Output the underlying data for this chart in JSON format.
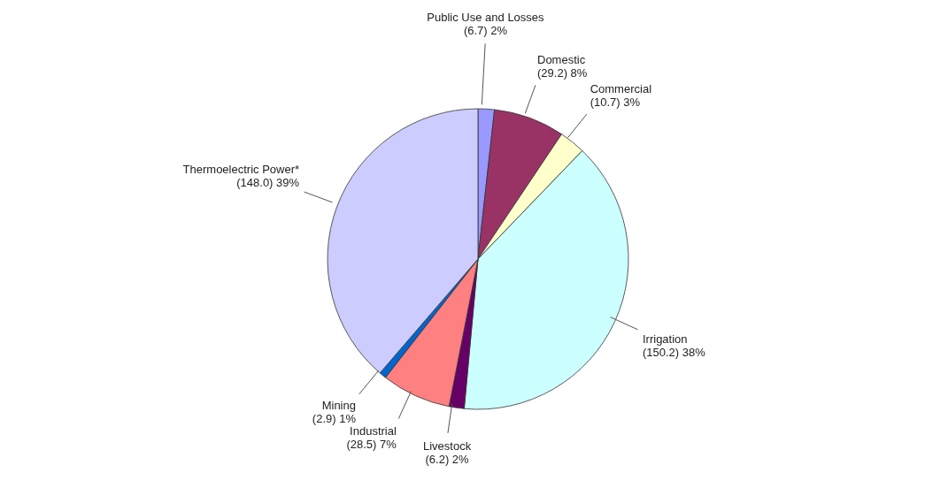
{
  "chart_data": {
    "type": "pie",
    "categories": [
      "Public Use and Losses",
      "Domestic",
      "Commercial",
      "Irrigation",
      "Livestock",
      "Industrial",
      "Mining",
      "Thermoelectric Power*"
    ],
    "values": [
      6.7,
      29.2,
      10.7,
      150.2,
      6.2,
      28.5,
      2.9,
      148.0
    ],
    "value_labels": [
      "(6.7) 2%",
      "(29.2) 8%",
      "(10.7) 3%",
      "(150.2) 38%",
      "(6.2) 2%",
      "(28.5) 7%",
      "(2.9) 1%",
      "(148.0) 39%"
    ],
    "colors": [
      "#9999ff",
      "#993366",
      "#ffffcc",
      "#ccffff",
      "#660066",
      "#ff8080",
      "#0066cc",
      "#ccccff"
    ],
    "legend": false
  }
}
